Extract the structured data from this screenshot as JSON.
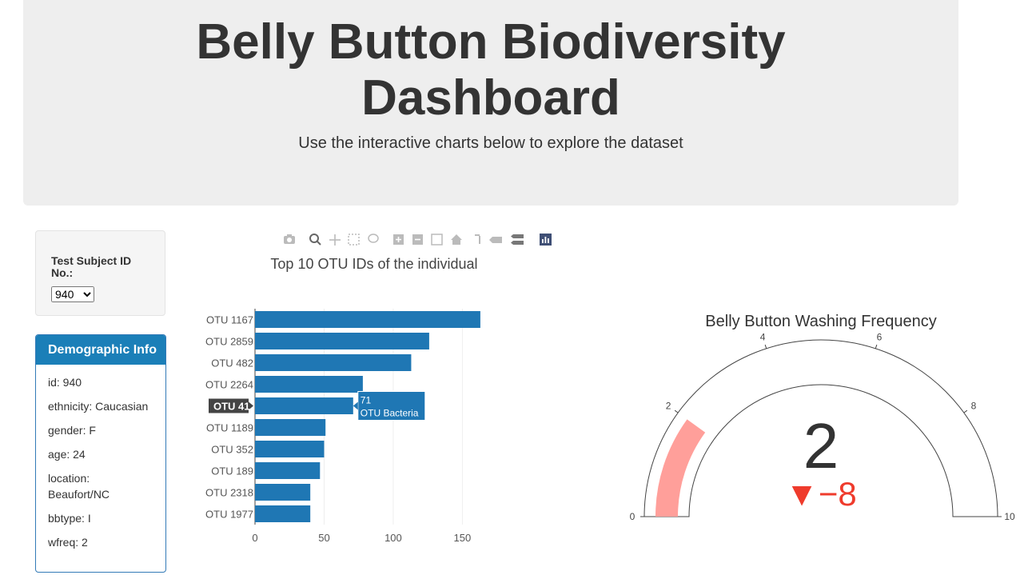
{
  "header": {
    "title_line1": "Belly Button Biodiversity",
    "title_line2": "Dashboard",
    "subtitle": "Use the interactive charts below to explore the dataset"
  },
  "selector": {
    "label": "Test Subject ID No.:",
    "selected": "940"
  },
  "demographic": {
    "title": "Demographic Info",
    "rows": [
      "id: 940",
      "ethnicity: Caucasian",
      "gender: F",
      "age: 24",
      "location: Beaufort/NC",
      "bbtype: I",
      "wfreq: 2"
    ]
  },
  "toolbar": {
    "icons": [
      "camera-icon",
      "zoom-icon",
      "pan-icon",
      "box-select-icon",
      "lasso-icon",
      "zoom-in-icon",
      "zoom-out-icon",
      "autoscale-icon",
      "reset-axes-icon",
      "spike-lines-icon",
      "hover-closest-icon",
      "hover-compare-icon",
      "plotly-logo-icon"
    ]
  },
  "chart_data": [
    {
      "type": "bar",
      "orientation": "horizontal",
      "title": "Top 10 OTU IDs of the individual",
      "categories": [
        "OTU 1167",
        "OTU 2859",
        "OTU 482",
        "OTU 2264",
        "OTU 41",
        "OTU 1189",
        "OTU 352",
        "OTU 189",
        "OTU 2318",
        "OTU 1977"
      ],
      "values": [
        163,
        126,
        113,
        78,
        71,
        51,
        50,
        47,
        40,
        40
      ],
      "xlim": [
        0,
        170
      ],
      "xticks": [
        0,
        50,
        100,
        150
      ],
      "bar_color": "#1f77b4",
      "tooltip": {
        "category": "OTU 41",
        "value": "71",
        "text": "OTU Bacteria"
      },
      "grid": true
    },
    {
      "type": "gauge",
      "title": "Belly Button Washing Frequency",
      "value": 2,
      "delta": "▼−8",
      "reference": 10,
      "range": [
        0,
        10
      ],
      "ticks": [
        0,
        2,
        4,
        6,
        8,
        10
      ],
      "bar_color": "#ff9f9a",
      "delta_color": "#ef3b2c"
    }
  ]
}
